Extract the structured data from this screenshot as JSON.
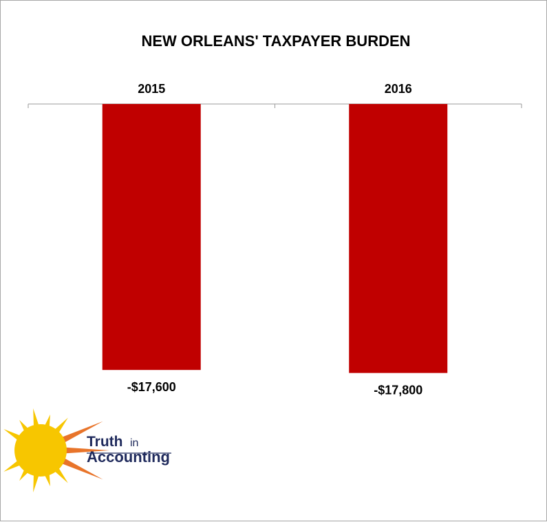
{
  "chart_data": {
    "type": "bar",
    "title": "NEW ORLEANS' TAXPAYER BURDEN",
    "categories": [
      "2015",
      "2016"
    ],
    "series": [
      {
        "values": [
          -17600,
          -17800
        ],
        "color": "#c00000"
      }
    ],
    "data_labels": [
      "-$17,600",
      "-$17,800"
    ],
    "ylim": [
      -18000,
      0
    ],
    "category_axis_position": "top",
    "grid": false,
    "legend": "none"
  },
  "logo": {
    "word1": "Truth",
    "word2": "in",
    "word3": "Accounting",
    "text_color": "#1f2a5c",
    "sun_color": "#f7c600",
    "ray_color": "#e8742a"
  }
}
